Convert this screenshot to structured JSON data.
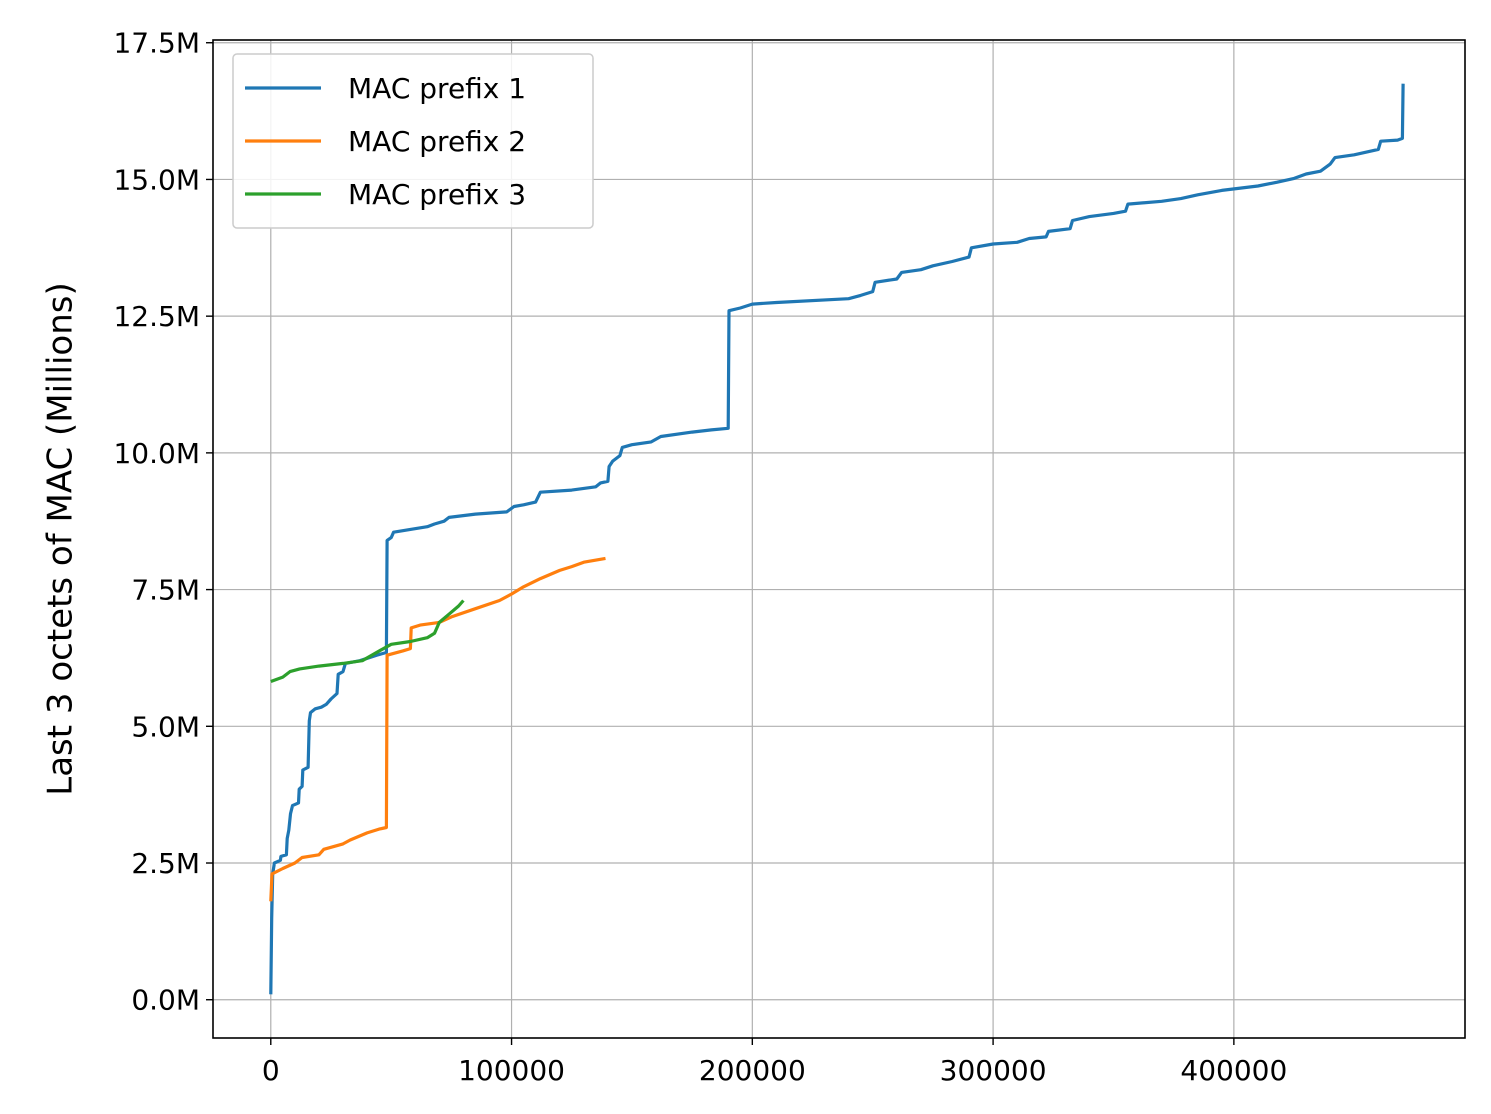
{
  "chart_data": {
    "type": "line",
    "title": "",
    "xlabel": "",
    "ylabel": "Last 3 octets of MAC (Millions)",
    "xlim": [
      -24000,
      496000
    ],
    "ylim": [
      -0.7,
      17.55
    ],
    "x_ticks": [
      0,
      100000,
      200000,
      300000,
      400000
    ],
    "x_tick_labels": [
      "0",
      "100000",
      "200000",
      "300000",
      "400000"
    ],
    "y_ticks": [
      0.0,
      2.5,
      5.0,
      7.5,
      10.0,
      12.5,
      15.0,
      17.5
    ],
    "y_tick_labels": [
      "0.0M",
      "2.5M",
      "5.0M",
      "7.5M",
      "10.0M",
      "12.5M",
      "15.0M",
      "17.5M"
    ],
    "grid": true,
    "legend_position": "top-left",
    "series": [
      {
        "name": "MAC prefix 1",
        "color": "#1f77b4",
        "points": [
          [
            0,
            0.1
          ],
          [
            400,
            1.5
          ],
          [
            800,
            2.3
          ],
          [
            1500,
            2.5
          ],
          [
            4000,
            2.55
          ],
          [
            4200,
            2.62
          ],
          [
            6500,
            2.65
          ],
          [
            6800,
            2.95
          ],
          [
            7500,
            3.1
          ],
          [
            8200,
            3.4
          ],
          [
            9000,
            3.55
          ],
          [
            11500,
            3.6
          ],
          [
            11800,
            3.85
          ],
          [
            13000,
            3.9
          ],
          [
            13300,
            4.2
          ],
          [
            15500,
            4.25
          ],
          [
            16000,
            5.1
          ],
          [
            16500,
            5.25
          ],
          [
            18500,
            5.32
          ],
          [
            21000,
            5.35
          ],
          [
            23000,
            5.4
          ],
          [
            25000,
            5.5
          ],
          [
            27500,
            5.6
          ],
          [
            28000,
            5.95
          ],
          [
            30000,
            6.0
          ],
          [
            31000,
            6.15
          ],
          [
            37000,
            6.2
          ],
          [
            44000,
            6.3
          ],
          [
            48000,
            6.35
          ],
          [
            48300,
            8.4
          ],
          [
            50000,
            8.45
          ],
          [
            51000,
            8.55
          ],
          [
            58000,
            8.6
          ],
          [
            65000,
            8.65
          ],
          [
            68000,
            8.7
          ],
          [
            72000,
            8.75
          ],
          [
            74000,
            8.82
          ],
          [
            85000,
            8.88
          ],
          [
            98000,
            8.92
          ],
          [
            101000,
            9.02
          ],
          [
            105000,
            9.05
          ],
          [
            110000,
            9.1
          ],
          [
            112000,
            9.28
          ],
          [
            125000,
            9.32
          ],
          [
            135000,
            9.38
          ],
          [
            137000,
            9.45
          ],
          [
            140000,
            9.48
          ],
          [
            140500,
            9.75
          ],
          [
            142000,
            9.85
          ],
          [
            145000,
            9.95
          ],
          [
            146000,
            10.1
          ],
          [
            150000,
            10.15
          ],
          [
            158000,
            10.2
          ],
          [
            162000,
            10.3
          ],
          [
            175000,
            10.38
          ],
          [
            183000,
            10.42
          ],
          [
            190000,
            10.45
          ],
          [
            190300,
            12.6
          ],
          [
            195000,
            12.65
          ],
          [
            200000,
            12.72
          ],
          [
            210000,
            12.75
          ],
          [
            240000,
            12.82
          ],
          [
            245000,
            12.88
          ],
          [
            250000,
            12.95
          ],
          [
            251000,
            13.12
          ],
          [
            260000,
            13.18
          ],
          [
            262000,
            13.3
          ],
          [
            270000,
            13.35
          ],
          [
            275000,
            13.42
          ],
          [
            283000,
            13.5
          ],
          [
            290000,
            13.58
          ],
          [
            291000,
            13.75
          ],
          [
            300000,
            13.82
          ],
          [
            310000,
            13.85
          ],
          [
            315000,
            13.92
          ],
          [
            322000,
            13.95
          ],
          [
            323000,
            14.05
          ],
          [
            332000,
            14.1
          ],
          [
            333000,
            14.25
          ],
          [
            340000,
            14.32
          ],
          [
            350000,
            14.38
          ],
          [
            355000,
            14.42
          ],
          [
            356000,
            14.55
          ],
          [
            370000,
            14.6
          ],
          [
            378000,
            14.65
          ],
          [
            385000,
            14.72
          ],
          [
            395000,
            14.8
          ],
          [
            410000,
            14.88
          ],
          [
            418000,
            14.95
          ],
          [
            425000,
            15.02
          ],
          [
            430000,
            15.1
          ],
          [
            436000,
            15.15
          ],
          [
            440000,
            15.28
          ],
          [
            442000,
            15.4
          ],
          [
            450000,
            15.45
          ],
          [
            460000,
            15.55
          ],
          [
            461000,
            15.7
          ],
          [
            468000,
            15.72
          ],
          [
            470000,
            15.75
          ],
          [
            470300,
            16.75
          ]
        ]
      },
      {
        "name": "MAC prefix 2",
        "color": "#ff7f0e",
        "points": [
          [
            0,
            1.8
          ],
          [
            500,
            2.3
          ],
          [
            5000,
            2.4
          ],
          [
            10000,
            2.5
          ],
          [
            13000,
            2.6
          ],
          [
            20000,
            2.65
          ],
          [
            22000,
            2.75
          ],
          [
            30000,
            2.85
          ],
          [
            33000,
            2.92
          ],
          [
            40000,
            3.05
          ],
          [
            45000,
            3.12
          ],
          [
            48000,
            3.15
          ],
          [
            48300,
            6.3
          ],
          [
            55000,
            6.38
          ],
          [
            58000,
            6.42
          ],
          [
            58300,
            6.8
          ],
          [
            62000,
            6.85
          ],
          [
            70000,
            6.9
          ],
          [
            75000,
            7.0
          ],
          [
            85000,
            7.15
          ],
          [
            95000,
            7.3
          ],
          [
            100000,
            7.42
          ],
          [
            105000,
            7.55
          ],
          [
            112000,
            7.7
          ],
          [
            120000,
            7.85
          ],
          [
            125000,
            7.92
          ],
          [
            130000,
            8.0
          ],
          [
            139000,
            8.07
          ]
        ]
      },
      {
        "name": "MAC prefix 3",
        "color": "#2ca02c",
        "points": [
          [
            0,
            5.82
          ],
          [
            5000,
            5.9
          ],
          [
            8000,
            6.0
          ],
          [
            12000,
            6.05
          ],
          [
            20000,
            6.1
          ],
          [
            30000,
            6.15
          ],
          [
            38000,
            6.2
          ],
          [
            42000,
            6.3
          ],
          [
            46000,
            6.4
          ],
          [
            50000,
            6.5
          ],
          [
            58000,
            6.55
          ],
          [
            65000,
            6.62
          ],
          [
            68000,
            6.7
          ],
          [
            70000,
            6.9
          ],
          [
            74000,
            7.05
          ],
          [
            78000,
            7.2
          ],
          [
            80000,
            7.3
          ]
        ]
      }
    ]
  }
}
